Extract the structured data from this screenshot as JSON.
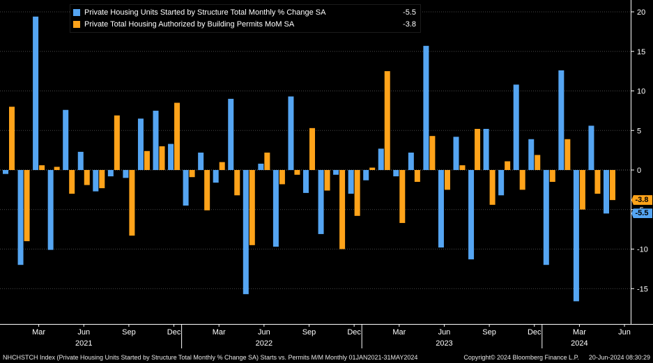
{
  "window_title": "Starts vs. Permits M/M",
  "colors": {
    "background": "#000000",
    "axis": "#ffffff",
    "grid": "#4a4a4a",
    "zero_line": "#6e6e6e",
    "starts_blue": "#55a5f2",
    "permits_orange": "#ffa31a"
  },
  "chart_data": {
    "type": "bar",
    "title": "Starts vs. Permits M/M Monthly % Change",
    "grid": "dotted-horizontal",
    "legend_position": "top-left",
    "xlabel": "",
    "ylabel": "",
    "ylim": [
      -19.8,
      20.6
    ],
    "y_ticks": [
      20,
      15,
      10,
      5,
      0,
      -5,
      -10,
      -15
    ],
    "months": [
      "2021-01",
      "2021-02",
      "2021-03",
      "2021-04",
      "2021-05",
      "2021-06",
      "2021-07",
      "2021-08",
      "2021-09",
      "2021-10",
      "2021-11",
      "2021-12",
      "2022-01",
      "2022-02",
      "2022-03",
      "2022-04",
      "2022-05",
      "2022-06",
      "2022-07",
      "2022-08",
      "2022-09",
      "2022-10",
      "2022-11",
      "2022-12",
      "2023-01",
      "2023-02",
      "2023-03",
      "2023-04",
      "2023-05",
      "2023-06",
      "2023-07",
      "2023-08",
      "2023-09",
      "2023-10",
      "2023-11",
      "2023-12",
      "2024-01",
      "2024-02",
      "2024-03",
      "2024-04",
      "2024-05"
    ],
    "series": [
      {
        "name": "Private Housing Units Started by Structure Total Monthly % Change SA",
        "color": "#55a5f2",
        "last_value": -5.5,
        "last_value_str": "-5.5",
        "values": [
          -0.5,
          -12.0,
          19.4,
          -10.1,
          7.6,
          2.3,
          -2.7,
          -0.8,
          -1.0,
          6.5,
          7.5,
          3.3,
          -4.5,
          2.2,
          -1.6,
          9.0,
          -15.7,
          0.8,
          -9.7,
          9.3,
          -2.9,
          -8.1,
          -0.6,
          -3.0,
          -1.3,
          2.7,
          -0.8,
          2.2,
          15.7,
          -9.8,
          4.2,
          -11.3,
          5.2,
          -3.2,
          10.8,
          3.9,
          -12.0,
          12.6,
          -16.6,
          5.6,
          -5.5
        ]
      },
      {
        "name": "Private Total Housing Authorized by Building Permits MoM SA",
        "color": "#ffa31a",
        "last_value": -3.8,
        "last_value_str": "-3.8",
        "values": [
          8.0,
          -9.0,
          0.6,
          0.4,
          -3.0,
          -1.9,
          -2.3,
          6.9,
          -8.3,
          2.4,
          3.0,
          8.5,
          -0.9,
          -5.1,
          1.0,
          -3.2,
          -9.5,
          2.2,
          -1.8,
          -0.6,
          5.3,
          -2.6,
          -10.0,
          -5.8,
          0.3,
          12.5,
          -6.7,
          -1.5,
          4.3,
          -2.5,
          0.6,
          5.2,
          -4.4,
          1.1,
          -2.5,
          1.9,
          -1.5,
          3.9,
          -5.0,
          -3.0,
          -3.8
        ]
      }
    ],
    "x_ticks": [
      {
        "i": 2,
        "label": "Mar"
      },
      {
        "i": 5,
        "label": "Jun"
      },
      {
        "i": 8,
        "label": "Sep"
      },
      {
        "i": 11,
        "label": "Dec"
      },
      {
        "i": 14,
        "label": "Mar"
      },
      {
        "i": 17,
        "label": "Jun"
      },
      {
        "i": 20,
        "label": "Sep"
      },
      {
        "i": 23,
        "label": "Dec"
      },
      {
        "i": 26,
        "label": "Mar"
      },
      {
        "i": 29,
        "label": "Jun"
      },
      {
        "i": 32,
        "label": "Sep"
      },
      {
        "i": 35,
        "label": "Dec"
      },
      {
        "i": 38,
        "label": "Mar"
      },
      {
        "i": 41,
        "label": "Jun"
      }
    ],
    "year_labels": [
      {
        "i": 5,
        "label": "2021"
      },
      {
        "i": 17,
        "label": "2022"
      },
      {
        "i": 29,
        "label": "2023"
      },
      {
        "i": 38,
        "label": "2024"
      }
    ],
    "year_separators": [
      12,
      24,
      36
    ]
  },
  "status_bar": {
    "description": "NHCHSTCH Index (Private Housing Units Started by Structure Total Monthly % Change SA) Starts vs. Permits M/M  Monthly 01JAN2021-31MAY2024",
    "copyright": "Copyright© 2024 Bloomberg Finance L.P.",
    "timestamp": "20-Jun-2024 08:30:29"
  }
}
